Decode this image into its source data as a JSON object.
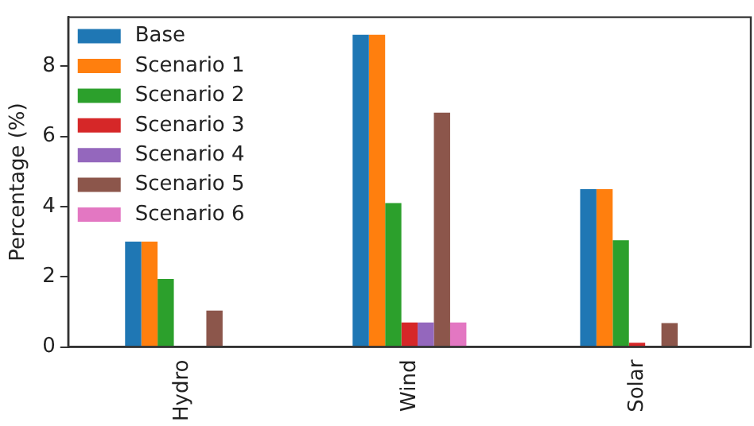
{
  "chart_data": {
    "type": "bar",
    "ylabel": "Percentage (%)",
    "categories": [
      "Hydro",
      "Wind",
      "Solar"
    ],
    "series": [
      {
        "name": "Base",
        "color": "#1f77b4",
        "values": [
          3.0,
          8.9,
          4.5
        ]
      },
      {
        "name": "Scenario 1",
        "color": "#ff7f0e",
        "values": [
          3.0,
          8.9,
          4.5
        ]
      },
      {
        "name": "Scenario 2",
        "color": "#2ca02c",
        "values": [
          1.94,
          4.1,
          3.04
        ]
      },
      {
        "name": "Scenario 3",
        "color": "#d62728",
        "values": [
          0,
          0.7,
          0.12
        ]
      },
      {
        "name": "Scenario 4",
        "color": "#9467bd",
        "values": [
          0,
          0.7,
          0
        ]
      },
      {
        "name": "Scenario 5",
        "color": "#8c564b",
        "values": [
          1.04,
          6.68,
          0.68
        ]
      },
      {
        "name": "Scenario 6",
        "color": "#e377c2",
        "values": [
          0,
          0.7,
          0
        ]
      }
    ],
    "ylim": [
      0,
      9.4
    ],
    "yticks": [
      0,
      2,
      4,
      6,
      8
    ],
    "grid": false,
    "legend": "top left"
  }
}
